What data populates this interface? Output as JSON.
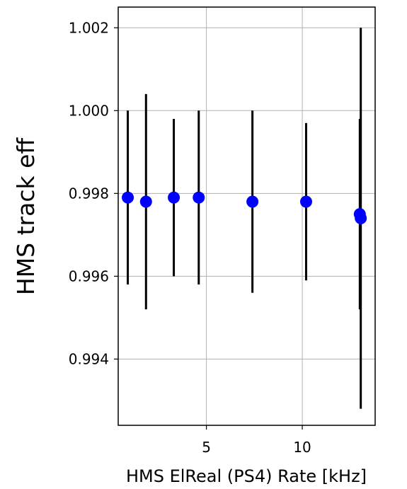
{
  "chart_data": {
    "type": "scatter",
    "xlabel": "HMS ElReal (PS4) Rate [kHz]",
    "ylabel": "HMS track eff",
    "xlim": [
      0.4,
      13.8
    ],
    "ylim": [
      0.9924,
      1.0025
    ],
    "x_ticks": [
      5,
      10
    ],
    "x_tick_labels": [
      "5",
      "10"
    ],
    "y_ticks": [
      0.994,
      0.996,
      0.998,
      1.0,
      1.002
    ],
    "y_tick_labels": [
      "0.994",
      "0.996",
      "0.998",
      "1.000",
      "1.002"
    ],
    "grid": true,
    "marker_color": "#0000ff",
    "errorbar_color": "#000000",
    "points": [
      {
        "x": 0.9,
        "y": 0.9979,
        "y_low": 0.9958,
        "y_high": 1.0
      },
      {
        "x": 1.85,
        "y": 0.9978,
        "y_low": 0.9952,
        "y_high": 1.0004
      },
      {
        "x": 3.3,
        "y": 0.9979,
        "y_low": 0.996,
        "y_high": 0.9998
      },
      {
        "x": 4.6,
        "y": 0.9979,
        "y_low": 0.9958,
        "y_high": 1.0
      },
      {
        "x": 7.4,
        "y": 0.9978,
        "y_low": 0.9956,
        "y_high": 1.0
      },
      {
        "x": 10.2,
        "y": 0.9978,
        "y_low": 0.9959,
        "y_high": 0.9997
      },
      {
        "x": 13.0,
        "y": 0.9975,
        "y_low": 0.9952,
        "y_high": 0.9998
      },
      {
        "x": 13.05,
        "y": 0.9974,
        "y_low": 0.9928,
        "y_high": 1.002
      }
    ]
  }
}
